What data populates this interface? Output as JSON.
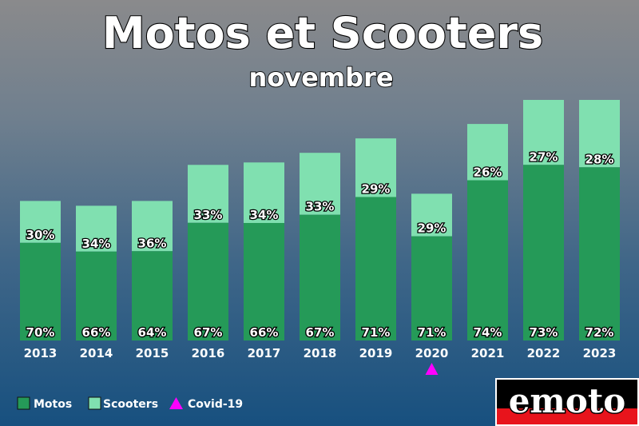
{
  "chart_data": {
    "type": "bar",
    "stacked": true,
    "title": "Motos et Scooters",
    "subtitle": "novembre",
    "categories": [
      "2013",
      "2014",
      "2015",
      "2016",
      "2017",
      "2018",
      "2019",
      "2020",
      "2021",
      "2022",
      "2023"
    ],
    "series": [
      {
        "name": "Motos",
        "color": "#259a58",
        "values": [
          70,
          66,
          64,
          67,
          66,
          67,
          71,
          71,
          74,
          73,
          72
        ],
        "labels": [
          "70%",
          "66%",
          "64%",
          "67%",
          "66%",
          "67%",
          "71%",
          "71%",
          "74%",
          "73%",
          "72%"
        ]
      },
      {
        "name": "Scooters",
        "color": "#80e0b0",
        "values": [
          30,
          34,
          36,
          33,
          34,
          33,
          29,
          29,
          26,
          27,
          28
        ],
        "labels": [
          "30%",
          "34%",
          "36%",
          "33%",
          "34%",
          "33%",
          "29%",
          "29%",
          "26%",
          "27%",
          "28%"
        ]
      }
    ],
    "relative_totals": [
      0.58,
      0.56,
      0.58,
      0.73,
      0.74,
      0.78,
      0.84,
      0.61,
      0.9,
      1.0,
      1.0
    ],
    "annotations": [
      {
        "category": "2020",
        "marker": "triangle",
        "label": "Covid-19",
        "color": "#ff00ff"
      }
    ],
    "legend": {
      "position": "bottom-left",
      "items": [
        {
          "label": "Motos",
          "color": "#259a58"
        },
        {
          "label": "Scooters",
          "color": "#80e0b0"
        },
        {
          "label": "Covid-19",
          "color": "#ff00ff"
        }
      ]
    },
    "grid": false
  },
  "brand": {
    "logo_text": "emoto"
  }
}
